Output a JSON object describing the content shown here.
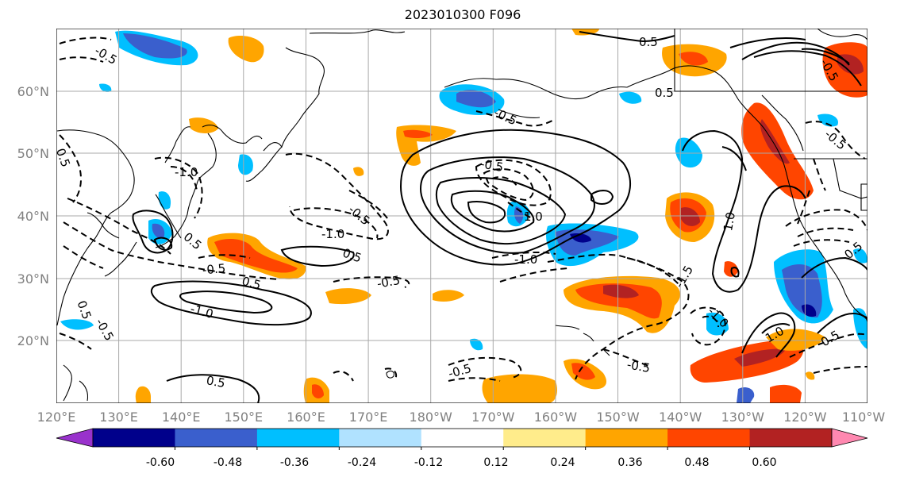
{
  "title": "2023010300 F096",
  "map": {
    "lon_ticks": [
      "120°E",
      "130°E",
      "140°E",
      "150°E",
      "160°E",
      "170°E",
      "180°W",
      "170°W",
      "160°W",
      "150°W",
      "140°W",
      "130°W",
      "120°W",
      "110°W"
    ],
    "lat_ticks": [
      "20°N",
      "30°N",
      "40°N",
      "50°N",
      "60°N"
    ],
    "grid": true,
    "contour_labels": [
      "-0.5",
      "0.5",
      "-0.5",
      "0.5",
      "-1.0",
      "-1.0",
      "0.5",
      "-0.5",
      "-0.5",
      "1.0",
      "-0.5",
      "-1.0",
      "-1.0",
      "0.5",
      "1.0",
      "-1.5",
      "0.5",
      "-0.5",
      "0.5",
      "-0.5",
      "1.0",
      "-1.0",
      "-0.5",
      "0.5",
      "0.5",
      "-0.5",
      "-0.5",
      "-0.5",
      "0.5",
      "0.5"
    ]
  },
  "colorbar": {
    "tick_labels": [
      "-0.60",
      "-0.48",
      "-0.36",
      "-0.24",
      "-0.12",
      "0.12",
      "0.24",
      "0.36",
      "0.48",
      "0.60"
    ],
    "colors": [
      "#9932CC",
      "#00008B",
      "#3A5FCD",
      "#00BFFF",
      "#B0E2FF",
      "#FFFFFF",
      "#FFEC8B",
      "#FFA500",
      "#FF4500",
      "#B22222",
      "#FF88B0"
    ]
  }
}
